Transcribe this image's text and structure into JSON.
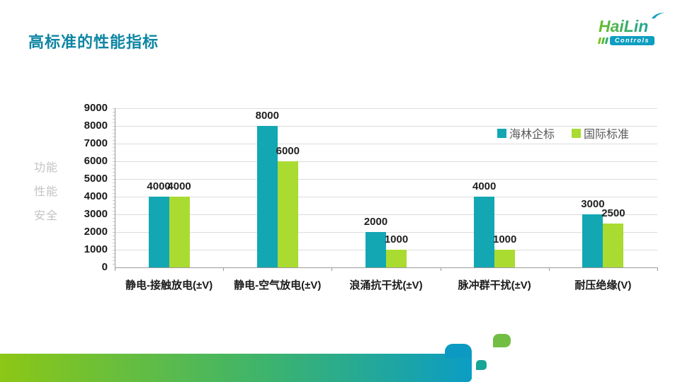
{
  "slide": {
    "title": "高标准的性能指标",
    "logo": {
      "brand": "HaiLin",
      "sub": "Controls"
    }
  },
  "chart_data": {
    "type": "bar",
    "title": "",
    "categories": [
      "静电-接触放电(±V)",
      "静电-空气放电(±V)",
      "浪涌抗干扰(±V)",
      "脉冲群干扰(±V)",
      "耐压绝缘(V)"
    ],
    "series": [
      {
        "name": "海林企标",
        "color": "#12A7B3",
        "values": [
          4000,
          8000,
          2000,
          4000,
          3000
        ]
      },
      {
        "name": "国际标准",
        "color": "#AADB31",
        "values": [
          4000,
          6000,
          1000,
          1000,
          2500
        ]
      }
    ],
    "ylabel_lines": [
      "功能",
      "性能",
      "安全"
    ],
    "ylim": [
      0,
      9000
    ],
    "ytick_step": 1000,
    "grid": true,
    "legend_position": "top-right"
  },
  "colors": {
    "title": "#0E86A3",
    "series1": "#12A7B3",
    "series2": "#AADB31",
    "gridline": "#DCDCDC",
    "axis": "#9B9B9B",
    "legend_text": "#595959",
    "axis_title": "#C3C3C3",
    "footer_gradient_start": "#8CC715",
    "footer_gradient_end": "#0B9DC4"
  }
}
